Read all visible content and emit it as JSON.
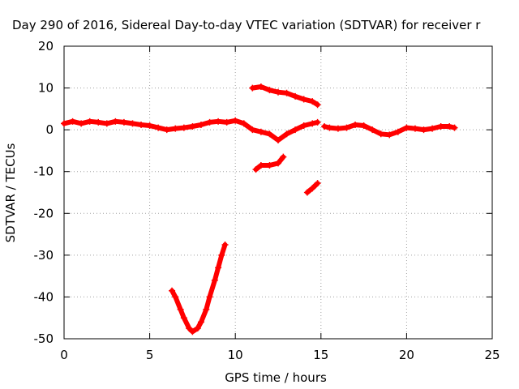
{
  "chart_data": {
    "type": "scatter",
    "title": "Day 290 of 2016, Sidereal Day-to-day VTEC variation (SDTVAR) for receiver r",
    "xlabel": "GPS time / hours",
    "ylabel": "SDTVAR / TECUs",
    "xlim": [
      0,
      25
    ],
    "ylim": [
      -50,
      20
    ],
    "x_ticks": [
      0,
      5,
      10,
      15,
      20,
      25
    ],
    "y_ticks": [
      -50,
      -40,
      -30,
      -20,
      -10,
      0,
      10,
      20
    ],
    "grid": true,
    "series_color": "#ff0000",
    "series": [
      {
        "points": [
          [
            0,
            1.5
          ],
          [
            0.5,
            2
          ],
          [
            1,
            1.5
          ],
          [
            1.5,
            2
          ],
          [
            2,
            1.8
          ],
          [
            2.5,
            1.5
          ],
          [
            3,
            2
          ],
          [
            3.5,
            1.8
          ],
          [
            4,
            1.5
          ],
          [
            4.5,
            1.2
          ],
          [
            5,
            1
          ],
          [
            5.5,
            0.5
          ],
          [
            6,
            0
          ],
          [
            6.5,
            0.3
          ],
          [
            7,
            0.5
          ],
          [
            7.5,
            0.8
          ],
          [
            8,
            1.2
          ],
          [
            8.5,
            1.8
          ],
          [
            9,
            2
          ],
          [
            9.5,
            1.8
          ],
          [
            10,
            2.2
          ],
          [
            10.5,
            1.5
          ],
          [
            11,
            0
          ],
          [
            11.5,
            -0.5
          ],
          [
            12,
            -1
          ],
          [
            12.5,
            -2.5
          ],
          [
            13,
            -1
          ],
          [
            13.5,
            0
          ],
          [
            14,
            1
          ],
          [
            14.5,
            1.5
          ],
          [
            14.8,
            1.8
          ]
        ]
      },
      {
        "points": [
          [
            15.2,
            0.8
          ],
          [
            15.5,
            0.5
          ],
          [
            16,
            0.3
          ],
          [
            16.5,
            0.5
          ],
          [
            17,
            1.2
          ],
          [
            17.5,
            1
          ],
          [
            18,
            0
          ],
          [
            18.5,
            -1
          ],
          [
            19,
            -1.2
          ],
          [
            19.5,
            -0.5
          ],
          [
            20,
            0.5
          ],
          [
            20.5,
            0.3
          ],
          [
            21,
            0
          ],
          [
            21.5,
            0.3
          ],
          [
            22,
            0.8
          ],
          [
            22.5,
            0.8
          ],
          [
            22.8,
            0.5
          ]
        ]
      },
      {
        "points": [
          [
            11,
            10
          ],
          [
            11.5,
            10.3
          ],
          [
            12,
            9.5
          ],
          [
            12.5,
            9
          ],
          [
            13,
            8.8
          ],
          [
            13.5,
            8
          ],
          [
            14,
            7.3
          ],
          [
            14.5,
            6.8
          ],
          [
            14.8,
            6
          ]
        ]
      },
      {
        "points": [
          [
            11.2,
            -9.5
          ],
          [
            11.5,
            -8.5
          ],
          [
            12,
            -8.5
          ],
          [
            12.5,
            -8
          ],
          [
            12.8,
            -6.5
          ]
        ]
      },
      {
        "points": [
          [
            14.2,
            -15
          ],
          [
            14.5,
            -14
          ],
          [
            14.8,
            -12.8
          ]
        ]
      },
      {
        "points": [
          [
            6.3,
            -38.5
          ],
          [
            6.5,
            -40
          ],
          [
            6.8,
            -43
          ],
          [
            7,
            -45
          ],
          [
            7.3,
            -47.5
          ],
          [
            7.5,
            -48.3
          ],
          [
            7.8,
            -47.5
          ],
          [
            8,
            -46
          ],
          [
            8.3,
            -43
          ],
          [
            8.5,
            -40
          ],
          [
            8.8,
            -36
          ],
          [
            9,
            -33
          ],
          [
            9.2,
            -30
          ],
          [
            9.4,
            -27.5
          ]
        ]
      }
    ]
  }
}
